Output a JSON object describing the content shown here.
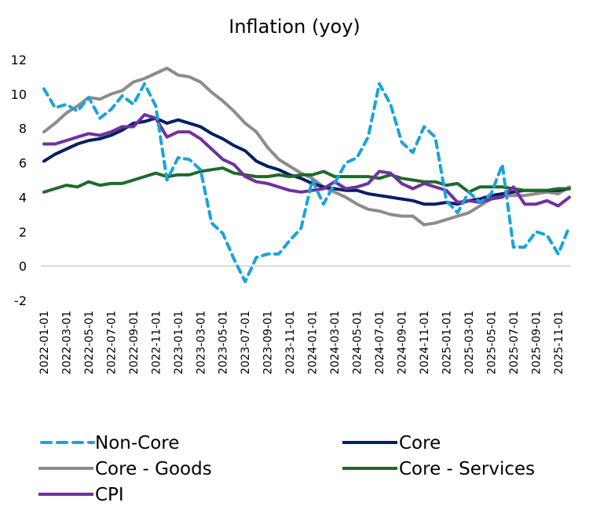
{
  "chart_data": {
    "type": "line",
    "title": "Inflation (yoy)",
    "xlabel": "",
    "ylabel": "",
    "ylim": [
      -2,
      12
    ],
    "yticks": [
      -2,
      0,
      2,
      4,
      6,
      8,
      10,
      12
    ],
    "grid": "zero-line only",
    "legend_position": "bottom",
    "x": [
      "2022-01-01",
      "2022-02-01",
      "2022-03-01",
      "2022-04-01",
      "2022-05-01",
      "2022-06-01",
      "2022-07-01",
      "2022-08-01",
      "2022-09-01",
      "2022-10-01",
      "2022-11-01",
      "2022-12-01",
      "2023-01-01",
      "2023-02-01",
      "2023-03-01",
      "2023-04-01",
      "2023-05-01",
      "2023-06-01",
      "2023-07-01",
      "2023-08-01",
      "2023-09-01",
      "2023-10-01",
      "2023-11-01",
      "2023-12-01",
      "2024-01-01",
      "2024-02-01",
      "2024-03-01",
      "2024-04-01",
      "2024-05-01",
      "2024-06-01",
      "2024-07-01",
      "2024-08-01",
      "2024-09-01",
      "2024-10-01",
      "2024-11-01",
      "2024-12-01",
      "2025-01-01",
      "2025-02-01",
      "2025-03-01",
      "2025-04-01",
      "2025-05-01",
      "2025-06-01",
      "2025-07-01",
      "2025-08-01",
      "2025-09-01",
      "2025-10-01",
      "2025-11-01",
      "2025-12-01"
    ],
    "xtick_labels": [
      "2022-01-01",
      "2022-03-01",
      "2022-05-01",
      "2022-07-01",
      "2022-09-01",
      "2022-11-01",
      "2023-01-01",
      "2023-03-01",
      "2023-05-01",
      "2023-07-01",
      "2023-09-01",
      "2023-11-01",
      "2024-01-01",
      "2024-03-01",
      "2024-05-01",
      "2024-07-01",
      "2024-09-01",
      "2024-11-01",
      "2025-01-01",
      "2025-03-01",
      "2025-05-01",
      "2025-07-01",
      "2025-09-01",
      "2025-11-01"
    ],
    "series": [
      {
        "name": "Non-Core",
        "color": "#1AA3DB",
        "style": "dashed",
        "values": [
          10.3,
          9.2,
          9.4,
          9.0,
          9.8,
          8.6,
          9.1,
          9.9,
          9.4,
          10.6,
          9.3,
          5.0,
          6.3,
          6.2,
          5.6,
          2.5,
          1.9,
          0.4,
          -0.9,
          0.5,
          0.7,
          0.7,
          1.5,
          2.2,
          5.0,
          3.6,
          4.8,
          6.0,
          6.3,
          7.5,
          10.6,
          9.4,
          7.2,
          6.6,
          8.1,
          7.5,
          3.8,
          3.1,
          4.3,
          3.7,
          4.2,
          5.9,
          1.1,
          1.1,
          2.0,
          1.8,
          0.7,
          2.3
        ]
      },
      {
        "name": "Core",
        "color": "#002060",
        "style": "solid",
        "values": [
          6.1,
          6.5,
          6.8,
          7.1,
          7.3,
          7.4,
          7.6,
          7.9,
          8.3,
          8.4,
          8.6,
          8.3,
          8.5,
          8.3,
          8.1,
          7.7,
          7.4,
          7.0,
          6.7,
          6.1,
          5.8,
          5.6,
          5.3,
          5.1,
          4.8,
          4.6,
          4.5,
          4.4,
          4.4,
          4.2,
          4.1,
          4.0,
          3.9,
          3.8,
          3.6,
          3.6,
          3.7,
          3.6,
          3.8,
          3.9,
          4.1,
          4.2,
          4.3,
          4.4,
          4.4,
          4.4,
          4.4,
          4.5
        ]
      },
      {
        "name": "Core - Goods",
        "color": "#8C8C8C",
        "style": "solid",
        "values": [
          7.8,
          8.3,
          8.9,
          9.3,
          9.8,
          9.7,
          10.0,
          10.2,
          10.7,
          10.9,
          11.2,
          11.5,
          11.1,
          11.0,
          10.7,
          10.1,
          9.6,
          9.0,
          8.3,
          7.8,
          6.9,
          6.2,
          5.8,
          5.4,
          5.1,
          4.6,
          4.3,
          4.0,
          3.6,
          3.3,
          3.2,
          3.0,
          2.9,
          2.9,
          2.4,
          2.5,
          2.7,
          2.9,
          3.1,
          3.5,
          3.9,
          4.1,
          4.1,
          4.1,
          4.2,
          4.3,
          4.2,
          4.6
        ]
      },
      {
        "name": "Core - Services",
        "color": "#1E6B2A",
        "style": "solid",
        "values": [
          4.3,
          4.5,
          4.7,
          4.6,
          4.9,
          4.7,
          4.8,
          4.8,
          5.0,
          5.2,
          5.4,
          5.2,
          5.3,
          5.3,
          5.5,
          5.6,
          5.7,
          5.4,
          5.3,
          5.2,
          5.2,
          5.3,
          5.2,
          5.3,
          5.3,
          5.5,
          5.2,
          5.2,
          5.2,
          5.2,
          5.1,
          5.3,
          5.1,
          5.0,
          4.9,
          4.9,
          4.7,
          4.8,
          4.3,
          4.6,
          4.6,
          4.6,
          4.5,
          4.4,
          4.4,
          4.4,
          4.5,
          4.5
        ]
      },
      {
        "name": "CPI",
        "color": "#7030A0",
        "style": "solid",
        "values": [
          7.1,
          7.1,
          7.3,
          7.5,
          7.7,
          7.6,
          7.8,
          8.1,
          8.1,
          8.8,
          8.6,
          7.5,
          7.8,
          7.8,
          7.4,
          6.8,
          6.2,
          5.9,
          5.2,
          4.9,
          4.8,
          4.6,
          4.4,
          4.3,
          4.4,
          4.5,
          4.9,
          4.5,
          4.6,
          4.8,
          5.5,
          5.4,
          4.8,
          4.5,
          4.8,
          4.6,
          4.4,
          3.7,
          3.8,
          3.7,
          3.9,
          4.0,
          4.6,
          3.6,
          3.6,
          3.8,
          3.5,
          4.0
        ]
      }
    ],
    "legend": [
      {
        "label": "Non-Core",
        "series": 0
      },
      {
        "label": "Core",
        "series": 1
      },
      {
        "label": "Core - Goods",
        "series": 2
      },
      {
        "label": "Core - Services",
        "series": 3
      },
      {
        "label": "CPI",
        "series": 4
      }
    ]
  }
}
